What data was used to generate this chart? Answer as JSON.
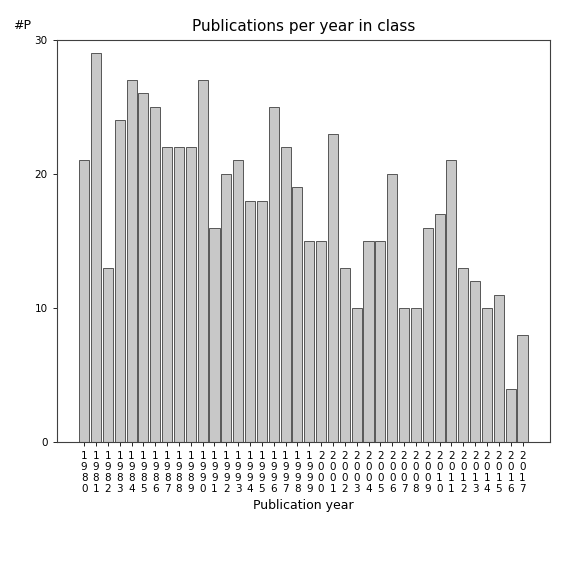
{
  "title": "Publications per year in class",
  "xlabel": "Publication year",
  "ylabel": "#P",
  "years": [
    1980,
    1981,
    1982,
    1983,
    1984,
    1985,
    1986,
    1987,
    1988,
    1989,
    1990,
    1991,
    1992,
    1993,
    1994,
    1995,
    1996,
    1997,
    1998,
    1999,
    2000,
    2001,
    2002,
    2003,
    2004,
    2005,
    2006,
    2007,
    2008,
    2009,
    2010,
    2011,
    2012,
    2013,
    2014,
    2015,
    2016,
    2017
  ],
  "values": [
    21,
    29,
    13,
    24,
    27,
    26,
    25,
    22,
    22,
    22,
    27,
    16,
    20,
    21,
    18,
    18,
    25,
    22,
    19,
    15,
    15,
    23,
    13,
    10,
    15,
    15,
    20,
    10,
    10,
    16,
    17,
    21,
    13,
    12,
    10,
    11,
    4,
    8
  ],
  "bar_color": "#c8c8c8",
  "bar_edge_color": "#404040",
  "background_color": "#ffffff",
  "ylim": [
    0,
    30
  ],
  "yticks": [
    0,
    10,
    20,
    30
  ],
  "title_fontsize": 11,
  "axis_label_fontsize": 9,
  "tick_fontsize": 7.5
}
